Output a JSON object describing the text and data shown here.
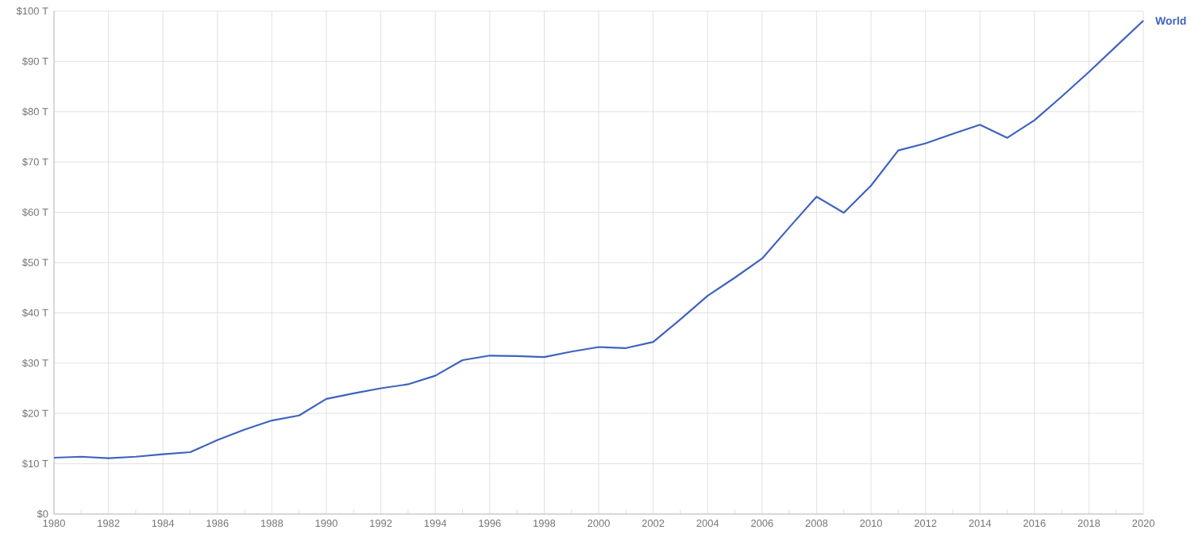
{
  "chart_data": {
    "type": "line",
    "x": [
      1980,
      1981,
      1982,
      1983,
      1984,
      1985,
      1986,
      1987,
      1988,
      1989,
      1990,
      1991,
      1992,
      1993,
      1994,
      1995,
      1996,
      1997,
      1998,
      1999,
      2000,
      2001,
      2002,
      2003,
      2004,
      2005,
      2006,
      2007,
      2008,
      2009,
      2010,
      2011,
      2012,
      2013,
      2014,
      2015,
      2016,
      2017,
      2018,
      2019,
      2020
    ],
    "series": [
      {
        "name": "World",
        "color": "#3d63bf",
        "values": [
          11.2,
          11.4,
          11.1,
          11.4,
          11.9,
          12.3,
          14.7,
          16.8,
          18.6,
          19.6,
          22.9,
          24.0,
          25.0,
          25.8,
          27.5,
          30.6,
          31.5,
          31.4,
          31.2,
          32.3,
          33.2,
          33.0,
          34.2,
          38.7,
          43.4,
          47.0,
          50.8,
          57.0,
          63.1,
          59.9,
          65.3,
          72.3,
          73.7,
          75.6,
          77.4,
          74.8,
          78.3,
          83.0,
          87.9,
          93.0,
          98.1
        ]
      }
    ],
    "xlim": [
      1980,
      2020
    ],
    "ylim": [
      0,
      100
    ],
    "xticks": [
      1980,
      1982,
      1984,
      1986,
      1988,
      1990,
      1992,
      1994,
      1996,
      1998,
      2000,
      2002,
      2004,
      2006,
      2008,
      2010,
      2012,
      2014,
      2016,
      2018,
      2020
    ],
    "yticks": [
      {
        "value": 0,
        "label": "$0"
      },
      {
        "value": 10,
        "label": "$10 T"
      },
      {
        "value": 20,
        "label": "$20 T"
      },
      {
        "value": 30,
        "label": "$30 T"
      },
      {
        "value": 40,
        "label": "$40 T"
      },
      {
        "value": 50,
        "label": "$50 T"
      },
      {
        "value": 60,
        "label": "$60 T"
      },
      {
        "value": 70,
        "label": "$70 T"
      },
      {
        "value": 80,
        "label": "$80 T"
      },
      {
        "value": 90,
        "label": "$90 T"
      },
      {
        "value": 100,
        "label": "$100 T"
      }
    ],
    "grid": true,
    "marker": "none",
    "line_style": "solid"
  }
}
